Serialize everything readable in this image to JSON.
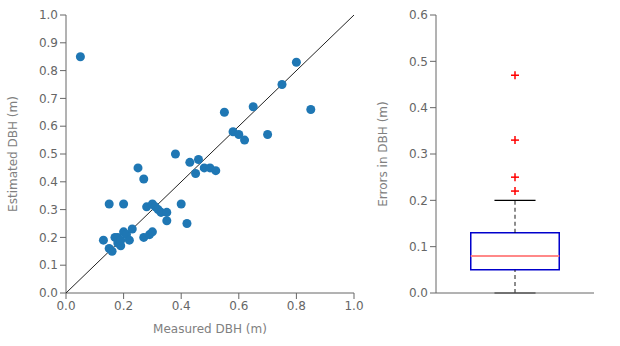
{
  "chart_data": [
    {
      "type": "scatter",
      "xlabel": "Measured DBH (m)",
      "ylabel": "Estimated DBH (m)",
      "xlim": [
        0,
        1
      ],
      "ylim": [
        0,
        1
      ],
      "xticks": [
        {
          "value": 0,
          "label": "0.0"
        },
        0.2,
        0.4,
        0.6,
        0.8,
        {
          "value": 1,
          "label": "1.0"
        }
      ],
      "yticks": [
        {
          "value": 0,
          "label": "0.0"
        },
        0.1,
        0.2,
        0.3,
        0.4,
        0.5,
        0.6,
        0.7,
        0.8,
        0.9,
        {
          "value": 1,
          "label": "1.0"
        }
      ],
      "series": [
        {
          "type": "line",
          "color": "#222222",
          "x": [
            0,
            1
          ],
          "values": [
            0,
            1
          ]
        },
        {
          "type": "scatter",
          "color": "#1f77b4",
          "marker": "circle",
          "x": [
            0.05,
            0.13,
            0.15,
            0.15,
            0.16,
            0.17,
            0.18,
            0.18,
            0.19,
            0.19,
            0.2,
            0.2,
            0.21,
            0.22,
            0.23,
            0.25,
            0.27,
            0.27,
            0.28,
            0.29,
            0.3,
            0.3,
            0.31,
            0.32,
            0.33,
            0.35,
            0.35,
            0.38,
            0.4,
            0.42,
            0.43,
            0.45,
            0.46,
            0.48,
            0.5,
            0.52,
            0.55,
            0.58,
            0.6,
            0.62,
            0.65,
            0.7,
            0.75,
            0.8,
            0.85
          ],
          "values": [
            0.85,
            0.19,
            0.16,
            0.32,
            0.15,
            0.2,
            0.18,
            0.2,
            0.17,
            0.19,
            0.22,
            0.32,
            0.21,
            0.19,
            0.23,
            0.45,
            0.41,
            0.2,
            0.31,
            0.21,
            0.22,
            0.32,
            0.31,
            0.3,
            0.29,
            0.29,
            0.26,
            0.5,
            0.32,
            0.25,
            0.47,
            0.43,
            0.48,
            0.45,
            0.45,
            0.44,
            0.65,
            0.58,
            0.57,
            0.55,
            0.67,
            0.57,
            0.75,
            0.83,
            0.66
          ]
        }
      ]
    },
    {
      "type": "box",
      "ylabel": "Errors in DBH (m)",
      "ylim": [
        0,
        0.6
      ],
      "yticks": [
        {
          "value": 0,
          "label": "0.0"
        },
        0.1,
        0.2,
        0.3,
        0.4,
        0.5,
        0.6
      ],
      "tick_labels": "y",
      "whisker_low": 0.0,
      "q1": 0.05,
      "median": 0.08,
      "q3": 0.13,
      "whisker_high": 0.2,
      "outliers": [
        0.22,
        0.25,
        0.33,
        0.47
      ],
      "color": "#0000CC",
      "median_color": "#FF8888",
      "outlier_color": "#FF0000"
    }
  ]
}
